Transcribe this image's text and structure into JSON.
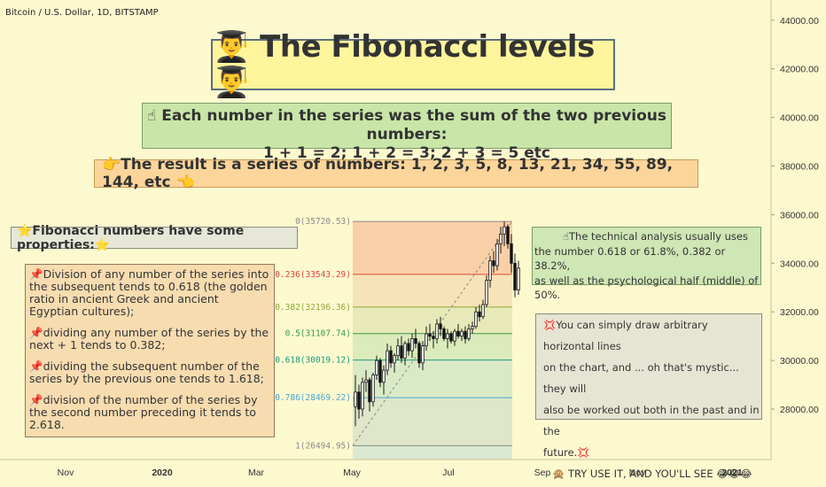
{
  "header": {
    "symbol": "Bitcoin / U.S. Dollar, 1D, BITSTAMP"
  },
  "title_box": {
    "text": "👨‍🎓 The Fibonacci levels 👨‍🎓"
  },
  "sum_box": {
    "line1": "☝ Each number in the series was the sum of the two previous numbers:",
    "line2": "1 + 1 = 2; 1 + 2 = 3; 2 + 3 = 5 etc"
  },
  "series_box": {
    "text": "👉The result is a series of numbers: 1, 2, 3, 5, 8, 13, 21, 34, 55, 89, 144,  etc 👈"
  },
  "props_box": {
    "text": "⭐Fibonacci numbers have some properties:⭐"
  },
  "properties_list": {
    "item1": "📌Division of any number of the series into the subsequent tends to 0.618 (the golden ratio in ancient Greek and ancient Egyptian cultures);",
    "item2": "📌dividing any number of the series by the next + 1 tends to 0.382;",
    "item3": "📌dividing the subsequent number of the series by the previous one tends to 1.618;",
    "item4": "📌division of the number of the series by the second number preceding it tends to 2.618."
  },
  "ta_box": {
    "line1": "☝The technical analysis usually uses",
    "line2": "the number 0.618 or 61.8%, 0.382 or 38.2%,",
    "line3": "as well as the psychological half (middle) of 50%."
  },
  "draw_box": {
    "line1": "💢You can simply draw arbitrary horizontal lines",
    "line2": "on the chart, and ... oh that's mystic... they will",
    "line3": "also be worked out both in the past and in the",
    "line4": "future.💢",
    "line5": "🙊 TRY USE IT, AND YOU'LL SEE 😂😂😂"
  },
  "chart_data": {
    "type": "candlestick",
    "symbol": "Bitcoin / U.S. Dollar, 1D, BITSTAMP",
    "y_axis": {
      "side": "right",
      "ticks": [
        28000,
        30000,
        32000,
        34000,
        36000,
        38000,
        40000,
        42000,
        44000
      ],
      "tick_labels": [
        "28000.00",
        "30000.00",
        "32000.00",
        "34000.00",
        "36000.00",
        "38000.00",
        "40000.00",
        "42000.00",
        "44000.00"
      ]
    },
    "x_axis": {
      "ticks": [
        "Nov",
        "2020",
        "Mar",
        "May",
        "Jul",
        "Sep",
        "Nov",
        "2021"
      ],
      "bold_ticks": [
        "2020",
        "2021"
      ]
    },
    "fib_levels": [
      {
        "ratio": "0",
        "price": 35720.53,
        "label": "0(35720.53)",
        "color": "#8a8a8a"
      },
      {
        "ratio": "0.236",
        "price": 33543.29,
        "label": "0.236(33543.29)",
        "color": "#e0473d"
      },
      {
        "ratio": "0.382",
        "price": 32196.36,
        "label": "0.382(32196.36)",
        "color": "#8fa83a"
      },
      {
        "ratio": "0.5",
        "price": 31107.74,
        "label": "0.5(31107.74)",
        "color": "#3a9a44"
      },
      {
        "ratio": "0.618",
        "price": 30019.12,
        "label": "0.618(30019.12)",
        "color": "#1b9a7b"
      },
      {
        "ratio": "0.786",
        "price": 28469.22,
        "label": "0.786(28469.22)",
        "color": "#4aa6d8"
      },
      {
        "ratio": "1",
        "price": 26494.95,
        "label": "1(26494.95)",
        "color": "#8a8a8a"
      }
    ],
    "fib_zone_colors": [
      "#f8c8a0",
      "#f4dfb4",
      "#e3e8b4",
      "#d5e9b8",
      "#d3e8c4",
      "#d9e3c8"
    ],
    "candles": [
      [
        28100,
        29400,
        27300,
        28700
      ],
      [
        28700,
        29000,
        27600,
        28000
      ],
      [
        28000,
        29300,
        27700,
        29100
      ],
      [
        29100,
        29600,
        28700,
        29200
      ],
      [
        29200,
        29300,
        27900,
        28300
      ],
      [
        28300,
        29500,
        28100,
        29400
      ],
      [
        29400,
        30200,
        29200,
        30000
      ],
      [
        30000,
        30100,
        28900,
        29100
      ],
      [
        29100,
        29800,
        28600,
        29600
      ],
      [
        29600,
        30700,
        29400,
        30400
      ],
      [
        30400,
        30600,
        29700,
        29900
      ],
      [
        29900,
        30300,
        29500,
        30200
      ],
      [
        30200,
        30900,
        30000,
        30600
      ],
      [
        30600,
        31000,
        29900,
        30100
      ],
      [
        30100,
        30800,
        29800,
        30700
      ],
      [
        30700,
        30900,
        30200,
        30400
      ],
      [
        30400,
        31100,
        30100,
        30900
      ],
      [
        30900,
        31300,
        30500,
        30700
      ],
      [
        30700,
        30800,
        29700,
        29900
      ],
      [
        29900,
        30800,
        29600,
        30600
      ],
      [
        30600,
        31400,
        30400,
        31100
      ],
      [
        31100,
        31500,
        30800,
        31000
      ],
      [
        31000,
        31200,
        30500,
        30900
      ],
      [
        30900,
        31700,
        30700,
        31500
      ],
      [
        31500,
        31800,
        31000,
        31300
      ],
      [
        31300,
        31400,
        30800,
        30900
      ],
      [
        30900,
        31300,
        30500,
        31100
      ],
      [
        31100,
        31200,
        30700,
        30800
      ],
      [
        30800,
        31300,
        30600,
        31200
      ],
      [
        31200,
        31500,
        30900,
        31000
      ],
      [
        31000,
        31300,
        30800,
        31200
      ],
      [
        31200,
        31400,
        30700,
        30900
      ],
      [
        30900,
        31500,
        30800,
        31300
      ],
      [
        31300,
        31600,
        31100,
        31400
      ],
      [
        31400,
        32200,
        31300,
        32000
      ],
      [
        32000,
        32300,
        31600,
        31800
      ],
      [
        31800,
        32500,
        31700,
        32300
      ],
      [
        32300,
        33500,
        32200,
        33300
      ],
      [
        33300,
        34300,
        33000,
        34100
      ],
      [
        34100,
        34500,
        33600,
        33900
      ],
      [
        33900,
        35000,
        33700,
        34800
      ],
      [
        34800,
        35500,
        34400,
        35200
      ],
      [
        35200,
        35720,
        34700,
        35500
      ],
      [
        35500,
        35600,
        34600,
        34800
      ],
      [
        34800,
        35200,
        33600,
        34000
      ],
      [
        34000,
        34400,
        32600,
        32900
      ],
      [
        32900,
        34100,
        32700,
        33800
      ]
    ]
  }
}
